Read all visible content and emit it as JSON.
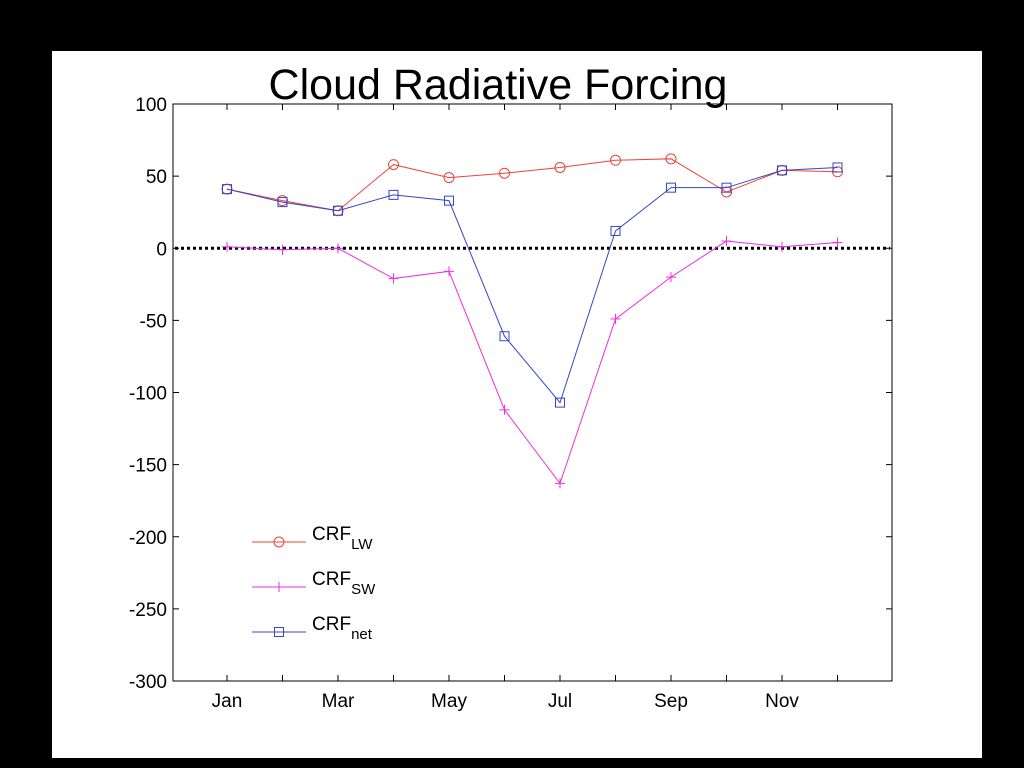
{
  "chart_data": {
    "type": "line",
    "title": "Cloud Radiative Forcing",
    "xlabel": "",
    "ylabel": "",
    "ylim": [
      -300,
      100
    ],
    "yticks": [
      100,
      50,
      0,
      -50,
      -100,
      -150,
      -200,
      -250,
      -300
    ],
    "xlim": [
      0.5,
      13
    ],
    "xticks": [
      1,
      2,
      3,
      4,
      5,
      6,
      7,
      8,
      9,
      10,
      11,
      12
    ],
    "xtick_labels": [
      "Jan",
      "",
      "Mar",
      "",
      "May",
      "",
      "Jul",
      "",
      "Sep",
      "",
      "Nov",
      ""
    ],
    "x": [
      1,
      2,
      3,
      4,
      5,
      6,
      7,
      8,
      9,
      10,
      11,
      12
    ],
    "zero_line": "dotted",
    "grid": false,
    "legend_position": "bottom-left",
    "series": [
      {
        "name": "CRF",
        "subscript": "LW",
        "color": "#e8443a",
        "marker": "circle",
        "values": [
          41,
          33,
          26,
          58,
          49,
          52,
          56,
          61,
          62,
          39,
          54,
          53
        ]
      },
      {
        "name": "CRF",
        "subscript": "SW",
        "color": "#ee2ee0",
        "marker": "plus",
        "values": [
          1,
          -1,
          0,
          -21,
          -16,
          -112,
          -163,
          -49,
          -20,
          5,
          1,
          4
        ]
      },
      {
        "name": "CRF",
        "subscript": "net",
        "color": "#3646c8",
        "marker": "square",
        "values": [
          41,
          32,
          26,
          37,
          33,
          -61,
          -107,
          12,
          42,
          42,
          54,
          56
        ]
      }
    ]
  }
}
